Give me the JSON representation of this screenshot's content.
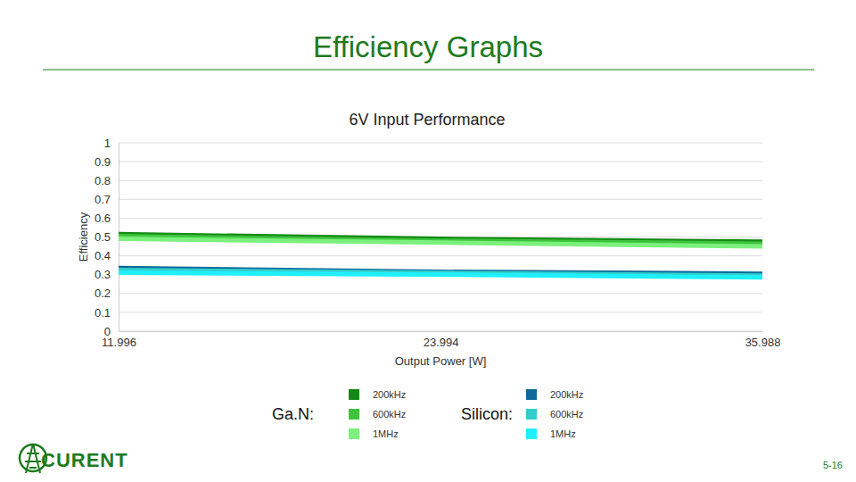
{
  "page": {
    "title": "Efficiency Graphs",
    "logo": "CURENT",
    "page_number": "5-16"
  },
  "chart_data": {
    "type": "line",
    "title": "6V Input Performance",
    "x_label": "Output Power [W]",
    "y_label": "Efficiency",
    "x": [
      11.996,
      23.994,
      35.988
    ],
    "xlim": [
      11.996,
      35.988
    ],
    "xticks": [
      11.996,
      23.994,
      35.988
    ],
    "ylim": [
      0,
      1
    ],
    "yticks": [
      0,
      0.1,
      0.2,
      0.3,
      0.4,
      0.5,
      0.6,
      0.7,
      0.8,
      0.9,
      1
    ],
    "grid": true,
    "legend": "bottom",
    "series": [
      {
        "name": "200kHz",
        "group": "Ga.N:",
        "color": "#138a13",
        "values": [
          0.515,
          0.49,
          0.475
        ]
      },
      {
        "name": "600kHz",
        "group": "Ga.N:",
        "color": "#3dc43d",
        "values": [
          0.505,
          0.48,
          0.465
        ]
      },
      {
        "name": "1MHz",
        "group": "Ga.N:",
        "color": "#7cf07c",
        "values": [
          0.49,
          0.47,
          0.45
        ]
      },
      {
        "name": "200kHz",
        "group": "Silicon:",
        "color": "#0b6a9a",
        "values": [
          0.335,
          0.315,
          0.305
        ]
      },
      {
        "name": "600kHz",
        "group": "Silicon:",
        "color": "#33cccc",
        "values": [
          0.325,
          0.31,
          0.295
        ]
      },
      {
        "name": "1MHz",
        "group": "Silicon:",
        "color": "#1ff0ff",
        "values": [
          0.31,
          0.3,
          0.285
        ]
      }
    ]
  }
}
